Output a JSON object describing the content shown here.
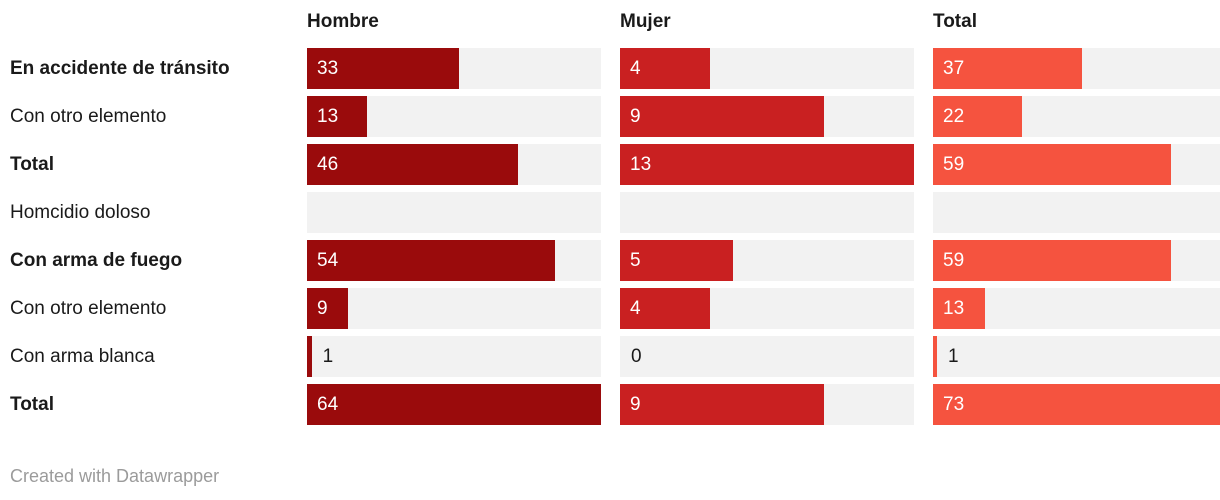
{
  "chart_data": {
    "type": "bar",
    "orientation": "horizontal",
    "layout": "split-columns-per-series",
    "track_color": "#f2f2f2",
    "label_text_color": "#1a1a1a",
    "value_text_color_inside": "#ffffff",
    "value_text_color_outside": "#1a1a1a",
    "columns": [
      {
        "label": "Hombre",
        "color": "#9a0b0c",
        "max": 64
      },
      {
        "label": "Mujer",
        "color": "#c92021",
        "max": 13
      },
      {
        "label": "Total",
        "color": "#f5533f",
        "max": 73
      }
    ],
    "rows": [
      {
        "label": "En accidente de tránsito",
        "bold": true,
        "values": [
          33,
          4,
          37
        ]
      },
      {
        "label": "Con otro elemento",
        "bold": false,
        "values": [
          13,
          9,
          22
        ]
      },
      {
        "label": "Total",
        "bold": true,
        "values": [
          46,
          13,
          59
        ]
      },
      {
        "label": "Homcidio doloso",
        "bold": false,
        "values": [
          null,
          null,
          null
        ]
      },
      {
        "label": "Con arma de fuego",
        "bold": true,
        "values": [
          54,
          5,
          59
        ]
      },
      {
        "label": "Con otro elemento",
        "bold": false,
        "values": [
          9,
          4,
          13
        ]
      },
      {
        "label": "Con arma blanca",
        "bold": false,
        "values": [
          1,
          0,
          1
        ]
      },
      {
        "label": "Total",
        "bold": true,
        "values": [
          64,
          9,
          73
        ]
      }
    ]
  },
  "footer": {
    "credit": "Created with Datawrapper"
  }
}
